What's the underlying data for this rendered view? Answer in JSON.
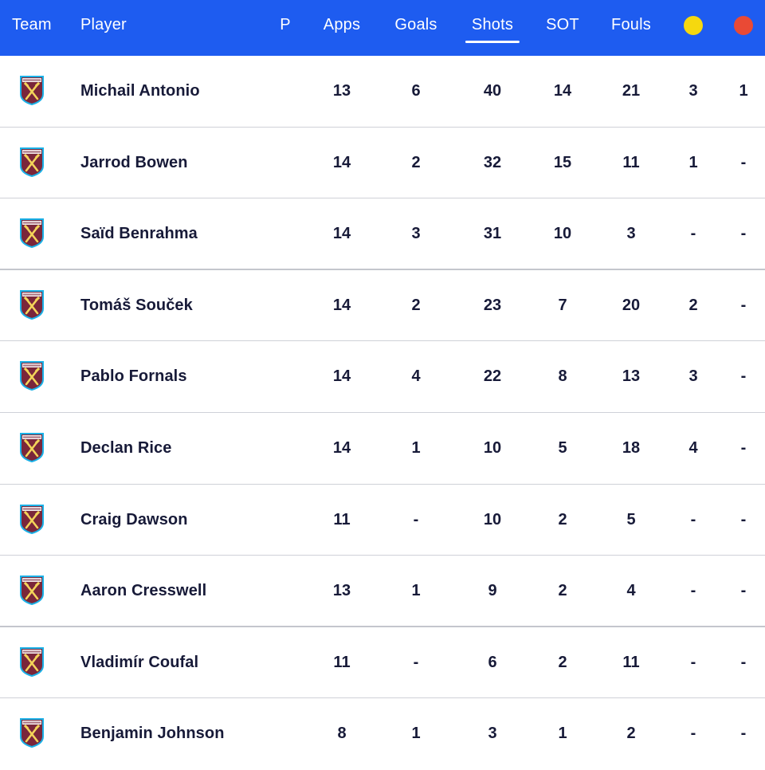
{
  "header": {
    "team": "Team",
    "player": "Player",
    "p": "P",
    "apps": "Apps",
    "goals": "Goals",
    "shots": "Shots",
    "sot": "SOT",
    "fouls": "Fouls",
    "active_sort": "Shots",
    "yellow_card_color": "#f5d80f",
    "red_card_color": "#e94a35"
  },
  "crest_icon": "west-ham-crest-icon",
  "rows": [
    {
      "player": "Michail Antonio",
      "apps": "13",
      "goals": "6",
      "shots": "40",
      "sot": "14",
      "fouls": "21",
      "yellow": "3",
      "red": "1"
    },
    {
      "player": "Jarrod Bowen",
      "apps": "14",
      "goals": "2",
      "shots": "32",
      "sot": "15",
      "fouls": "11",
      "yellow": "1",
      "red": "-"
    },
    {
      "player": "Saïd Benrahma",
      "apps": "14",
      "goals": "3",
      "shots": "31",
      "sot": "10",
      "fouls": "3",
      "yellow": "-",
      "red": "-"
    },
    {
      "player": "Tomáš Souček",
      "apps": "14",
      "goals": "2",
      "shots": "23",
      "sot": "7",
      "fouls": "20",
      "yellow": "2",
      "red": "-"
    },
    {
      "player": "Pablo Fornals",
      "apps": "14",
      "goals": "4",
      "shots": "22",
      "sot": "8",
      "fouls": "13",
      "yellow": "3",
      "red": "-"
    },
    {
      "player": "Declan Rice",
      "apps": "14",
      "goals": "1",
      "shots": "10",
      "sot": "5",
      "fouls": "18",
      "yellow": "4",
      "red": "-"
    },
    {
      "player": "Craig Dawson",
      "apps": "11",
      "goals": "-",
      "shots": "10",
      "sot": "2",
      "fouls": "5",
      "yellow": "-",
      "red": "-"
    },
    {
      "player": "Aaron Cresswell",
      "apps": "13",
      "goals": "1",
      "shots": "9",
      "sot": "2",
      "fouls": "4",
      "yellow": "-",
      "red": "-"
    },
    {
      "player": "Vladimír Coufal",
      "apps": "11",
      "goals": "-",
      "shots": "6",
      "sot": "2",
      "fouls": "11",
      "yellow": "-",
      "red": "-"
    },
    {
      "player": "Benjamin Johnson",
      "apps": "8",
      "goals": "1",
      "shots": "3",
      "sot": "1",
      "fouls": "2",
      "yellow": "-",
      "red": "-"
    }
  ]
}
